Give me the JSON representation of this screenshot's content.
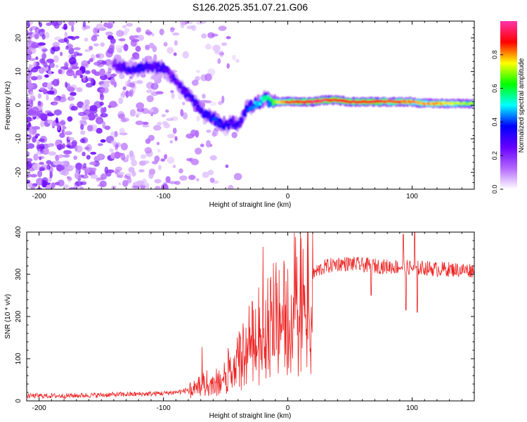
{
  "figure": {
    "title": "S126.2025.351.07.21.G06"
  },
  "chart_data": [
    {
      "type": "heatmap",
      "xlabel": "Height of straight line (km)",
      "ylabel": "Frequency (Hz)",
      "xlim": [
        -210,
        150
      ],
      "ylim": [
        -25,
        25
      ],
      "xticks": [
        -200,
        -100,
        0,
        100
      ],
      "yticks": [
        -20,
        -10,
        0,
        10,
        20
      ],
      "grid": false,
      "colorbar": {
        "label": "Normalized spectral amplitude",
        "range": [
          0,
          1
        ],
        "ticks": [
          0.0,
          0.2,
          0.4,
          0.6,
          0.8
        ],
        "colors": [
          "#ffffff",
          "#b366ff",
          "#6600ff",
          "#0000ff",
          "#00ffff",
          "#00ff00",
          "#ffff00",
          "#ff0000",
          "#ff33aa"
        ]
      },
      "ridge": {
        "x": [
          -140,
          -130,
          -120,
          -110,
          -100,
          -95,
          -90,
          -85,
          -80,
          -75,
          -70,
          -65,
          -60,
          -55,
          -50,
          -45,
          -40,
          -37,
          -33,
          -28,
          -22,
          -18,
          -14,
          -10,
          -5,
          0,
          10,
          20,
          30,
          40,
          50,
          60,
          70,
          80,
          90,
          100,
          110,
          120,
          130,
          140,
          150
        ],
        "f": [
          12,
          11,
          11,
          11.5,
          11,
          9,
          7,
          5,
          3,
          1,
          -1.5,
          -3,
          -4,
          -5,
          -6,
          -5,
          -6,
          -4,
          -1,
          0,
          1,
          2,
          1,
          1,
          1,
          1,
          1,
          1,
          1.5,
          1.5,
          1,
          1,
          1,
          1,
          1,
          1,
          0.5,
          0.5,
          0.5,
          0.5,
          0.5
        ],
        "amplitude": [
          0.25,
          0.3,
          0.35,
          0.3,
          0.3,
          0.25,
          0.28,
          0.3,
          0.3,
          0.32,
          0.3,
          0.35,
          0.4,
          0.35,
          0.35,
          0.3,
          0.3,
          0.3,
          0.4,
          0.45,
          0.5,
          0.55,
          0.6,
          0.7,
          0.8,
          0.85,
          0.9,
          0.95,
          0.95,
          0.9,
          0.9,
          0.9,
          0.9,
          0.85,
          0.85,
          0.8,
          0.8,
          0.8,
          0.75,
          0.7,
          0.7
        ]
      },
      "noise_region_x": [
        -210,
        -80
      ]
    },
    {
      "type": "line",
      "xlabel": "Height of straight line (km)",
      "ylabel": "SNR (10 * v/v)",
      "xlim": [
        -210,
        150
      ],
      "ylim": [
        0,
        400
      ],
      "xticks": [
        -200,
        -100,
        0,
        100
      ],
      "yticks": [
        0,
        100,
        200,
        300,
        400
      ],
      "grid": false,
      "series": [
        {
          "name": "SNR",
          "color": "#ee2222",
          "x": [
            -210,
            -180,
            -150,
            -120,
            -100,
            -85,
            -75,
            -70,
            -65,
            -60,
            -55,
            -50,
            -45,
            -40,
            -35,
            -30,
            -25,
            -20,
            -15,
            -10,
            -5,
            0,
            5,
            10,
            15,
            20,
            25,
            30,
            40,
            50,
            60,
            70,
            80,
            90,
            100,
            110,
            120,
            130,
            140,
            150
          ],
          "y": [
            12,
            12,
            14,
            16,
            18,
            22,
            32,
            40,
            50,
            40,
            60,
            70,
            90,
            110,
            130,
            150,
            170,
            190,
            200,
            220,
            235,
            250,
            260,
            270,
            285,
            300,
            310,
            318,
            325,
            325,
            322,
            320,
            318,
            318,
            315,
            315,
            312,
            312,
            310,
            310
          ],
          "spikes": [
            {
              "x": -69,
              "y": 128
            },
            {
              "x": -48,
              "y": 125
            },
            {
              "x": -38,
              "y": 150
            },
            {
              "x": -20,
              "y": 365
            },
            {
              "x": -7,
              "y": 310
            },
            {
              "x": 67,
              "y": 250
            },
            {
              "x": 93,
              "y": 395
            },
            {
              "x": 95,
              "y": 215
            },
            {
              "x": 102,
              "y": 400
            },
            {
              "x": 104,
              "y": 210
            }
          ]
        }
      ]
    }
  ]
}
